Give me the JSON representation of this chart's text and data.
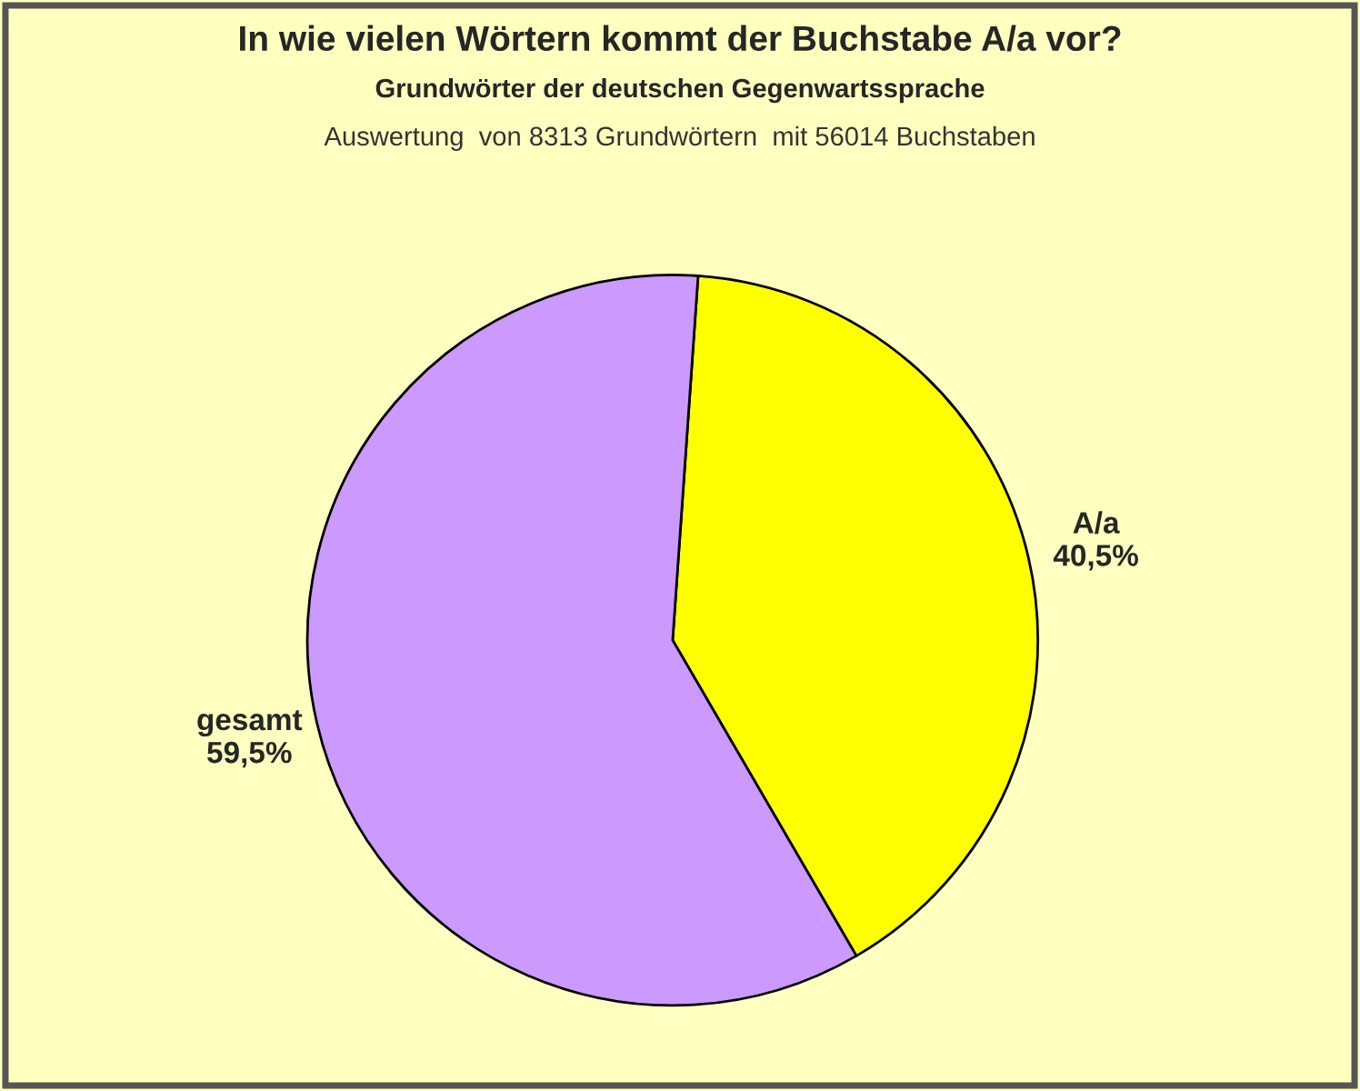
{
  "chart_data": {
    "type": "pie",
    "title": "In wie vielen Wörtern kommt der Buchstabe A/a vor?",
    "subtitle": "Grundwörter der deutschen Gegenwartssprache",
    "annotations": [
      "Auswertung  von 8313 Grundwörtern  mit 56014 Buchstaben"
    ],
    "categories": [
      "A/a",
      "gesamt"
    ],
    "values": [
      40.5,
      59.5
    ],
    "colors": [
      "#ffff00",
      "#cc99ff"
    ],
    "value_labels": [
      "40,5%",
      "59,5%"
    ],
    "legend": false
  }
}
